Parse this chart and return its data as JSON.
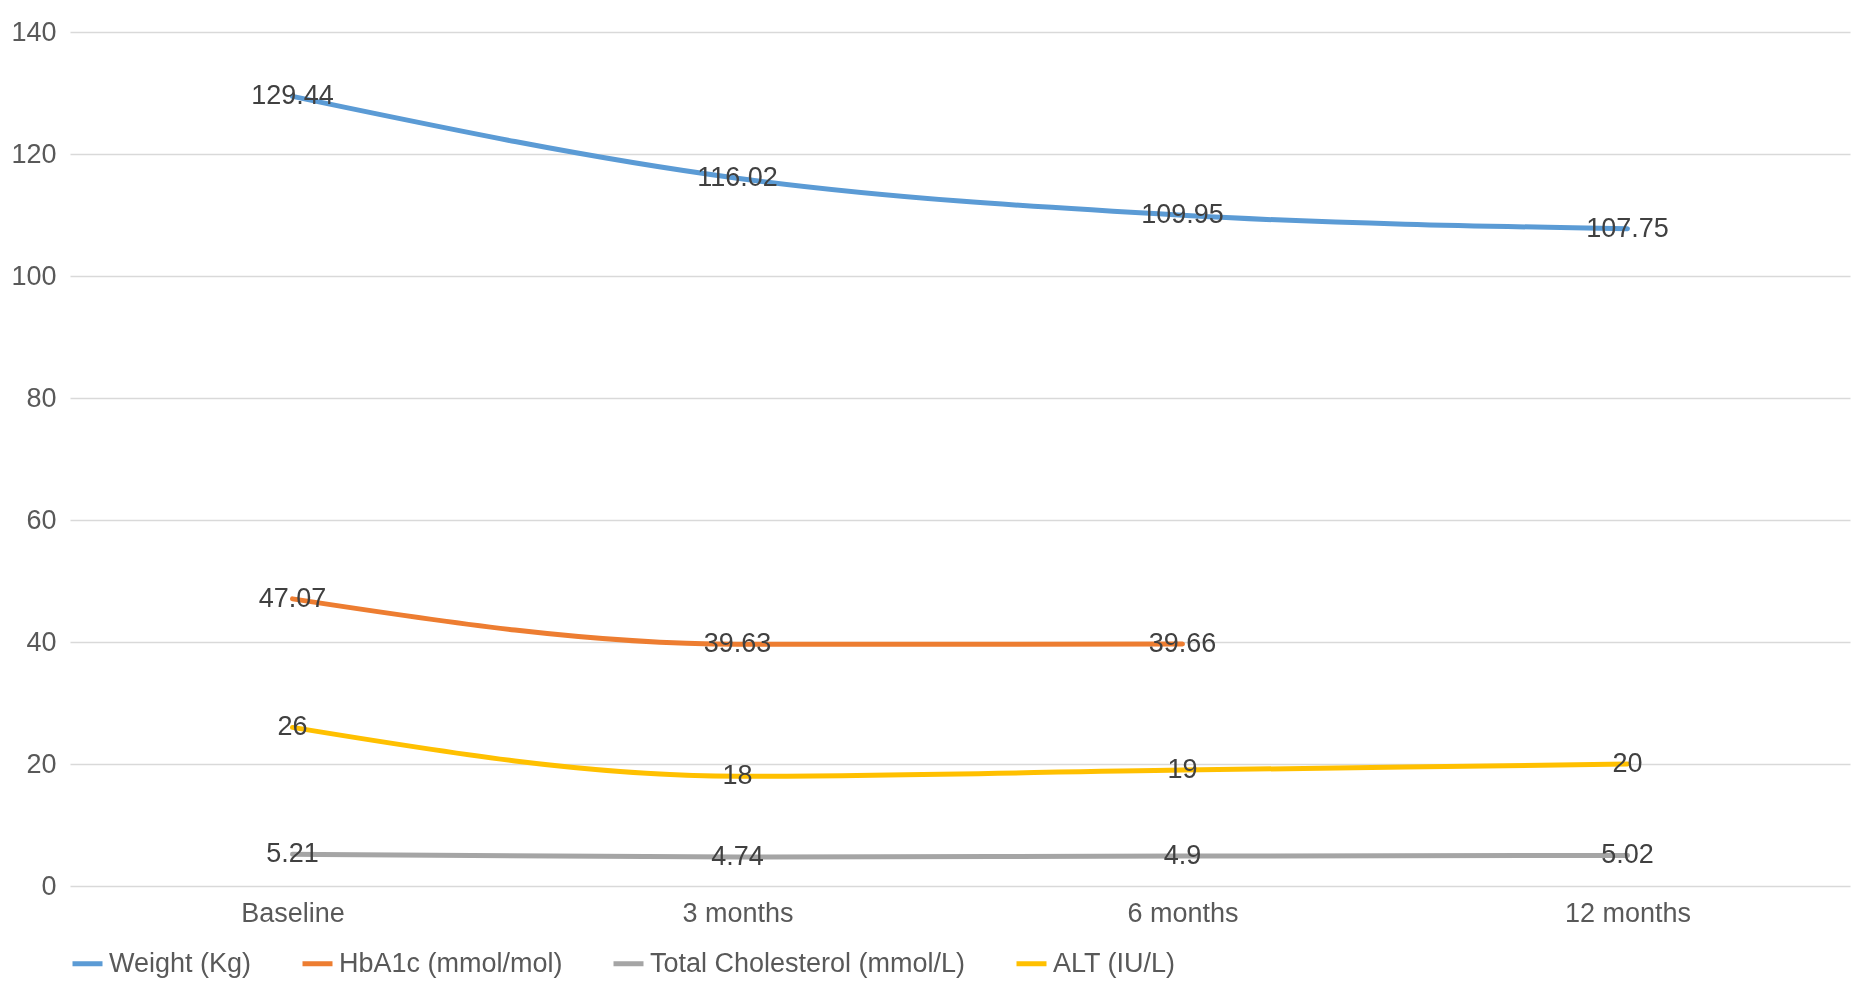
{
  "chart_data": {
    "type": "line",
    "categories": [
      "Baseline",
      "3 months",
      "6 months",
      "12 months"
    ],
    "series": [
      {
        "name": "Weight (Kg)",
        "color": "#5b9bd5",
        "values": [
          129.44,
          116.02,
          109.95,
          107.75
        ]
      },
      {
        "name": "HbA1c (mmol/mol)",
        "color": "#ed7d31",
        "values": [
          47.07,
          39.63,
          39.66,
          null
        ]
      },
      {
        "name": "Total Cholesterol (mmol/L)",
        "color": "#a5a5a5",
        "values": [
          5.21,
          4.74,
          4.9,
          5.02
        ]
      },
      {
        "name": "ALT (IU/L)",
        "color": "#ffc000",
        "values": [
          26,
          18,
          19,
          20
        ]
      }
    ],
    "ylim": [
      0,
      140
    ],
    "yticks": [
      0,
      20,
      40,
      60,
      80,
      100,
      120,
      140
    ],
    "grid": "y",
    "legend": "bottom",
    "data_labels": true,
    "marker": "none",
    "line_style": "solid"
  }
}
